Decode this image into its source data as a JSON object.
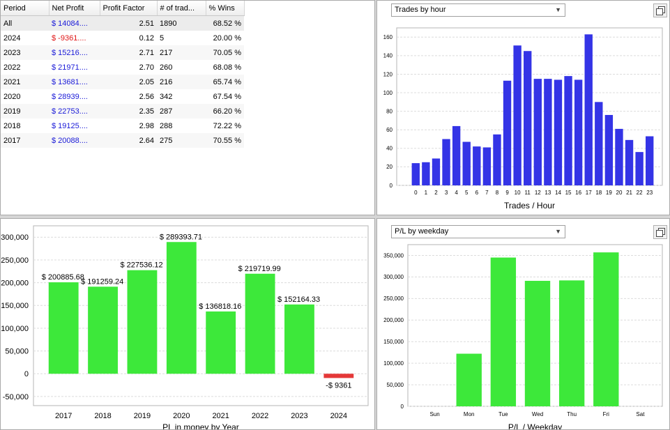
{
  "colors": {
    "profit": "#3de83a",
    "loss": "#e53838",
    "hour_bar": "#3434e6",
    "pos_text": "#1a1ad8",
    "neg_text": "#e01515"
  },
  "table": {
    "headers": [
      "Period",
      "Net Profit",
      "Profit Factor",
      "# of trad...",
      "% Wins"
    ],
    "rows": [
      {
        "period": "All",
        "net_profit": "$ 14084....",
        "profit_factor": "2.51",
        "trades": "1890",
        "wins": "68.52 %",
        "sign": "pos"
      },
      {
        "period": "2024",
        "net_profit": "$ -9361....",
        "profit_factor": "0.12",
        "trades": "5",
        "wins": "20.00 %",
        "sign": "neg"
      },
      {
        "period": "2023",
        "net_profit": "$ 15216....",
        "profit_factor": "2.71",
        "trades": "217",
        "wins": "70.05 %",
        "sign": "pos"
      },
      {
        "period": "2022",
        "net_profit": "$ 21971....",
        "profit_factor": "2.70",
        "trades": "260",
        "wins": "68.08 %",
        "sign": "pos"
      },
      {
        "period": "2021",
        "net_profit": "$ 13681....",
        "profit_factor": "2.05",
        "trades": "216",
        "wins": "65.74 %",
        "sign": "pos"
      },
      {
        "period": "2020",
        "net_profit": "$ 28939....",
        "profit_factor": "2.56",
        "trades": "342",
        "wins": "67.54 %",
        "sign": "pos"
      },
      {
        "period": "2019",
        "net_profit": "$ 22753....",
        "profit_factor": "2.35",
        "trades": "287",
        "wins": "66.20 %",
        "sign": "pos"
      },
      {
        "period": "2018",
        "net_profit": "$ 19125....",
        "profit_factor": "2.98",
        "trades": "288",
        "wins": "72.22 %",
        "sign": "pos"
      },
      {
        "period": "2017",
        "net_profit": "$ 20088....",
        "profit_factor": "2.64",
        "trades": "275",
        "wins": "70.55 %",
        "sign": "pos"
      }
    ]
  },
  "hour_panel": {
    "dropdown_value": "Trades by hour",
    "popout_icon": "popout-window-icon"
  },
  "weekday_panel": {
    "dropdown_value": "P/L by weekday",
    "popout_icon": "popout-window-icon"
  },
  "chart_data": [
    {
      "id": "hour",
      "type": "bar",
      "xlabel": "Trades / Hour",
      "categories": [
        "0",
        "1",
        "2",
        "3",
        "4",
        "5",
        "6",
        "7",
        "8",
        "9",
        "10",
        "11",
        "12",
        "13",
        "14",
        "15",
        "16",
        "17",
        "18",
        "19",
        "20",
        "21",
        "22",
        "23"
      ],
      "values": [
        24,
        25,
        29,
        50,
        64,
        47,
        42,
        41,
        55,
        113,
        151,
        145,
        115,
        115,
        114,
        118,
        114,
        163,
        90,
        76,
        61,
        49,
        36,
        53
      ],
      "ylim": [
        0,
        170
      ],
      "yticks": [
        0,
        20,
        40,
        60,
        80,
        100,
        120,
        140,
        160
      ],
      "ytick_labels": [
        "0",
        "20",
        "40",
        "60",
        "80",
        "100",
        "120",
        "140",
        "160"
      ],
      "grid": true
    },
    {
      "id": "year",
      "type": "bar",
      "xlabel": "PL in money by Year",
      "categories": [
        "2017",
        "2018",
        "2019",
        "2020",
        "2021",
        "2022",
        "2023",
        "2024"
      ],
      "values": [
        200885.68,
        191259.24,
        227536.12,
        289393.71,
        136818.16,
        219719.99,
        152164.33,
        -9361
      ],
      "data_labels": [
        "$ 200885.68",
        "$ 191259.24",
        "$ 227536.12",
        "$ 289393.71",
        "$ 136818.16",
        "$ 219719.99",
        "$ 152164.33",
        "-$ 9361"
      ],
      "ylim": [
        -70000,
        325000
      ],
      "yticks": [
        -50000,
        0,
        50000,
        100000,
        150000,
        200000,
        250000,
        300000
      ],
      "ytick_labels": [
        "-50,000",
        "0",
        "50,000",
        "100,000",
        "150,000",
        "200,000",
        "250,000",
        "300,000"
      ],
      "grid": true
    },
    {
      "id": "weekday",
      "type": "bar",
      "xlabel": "P/L / Weekday",
      "categories": [
        "Sun",
        "Mon",
        "Tue",
        "Wed",
        "Thu",
        "Fri",
        "Sat"
      ],
      "values": [
        0,
        122000,
        345000,
        291000,
        292000,
        357000,
        0
      ],
      "ylim": [
        0,
        375000
      ],
      "yticks": [
        0,
        50000,
        100000,
        150000,
        200000,
        250000,
        300000,
        350000
      ],
      "ytick_labels": [
        "0",
        "50,000",
        "100,000",
        "150,000",
        "200,000",
        "250,000",
        "300,000",
        "350,000"
      ],
      "grid": true
    }
  ]
}
